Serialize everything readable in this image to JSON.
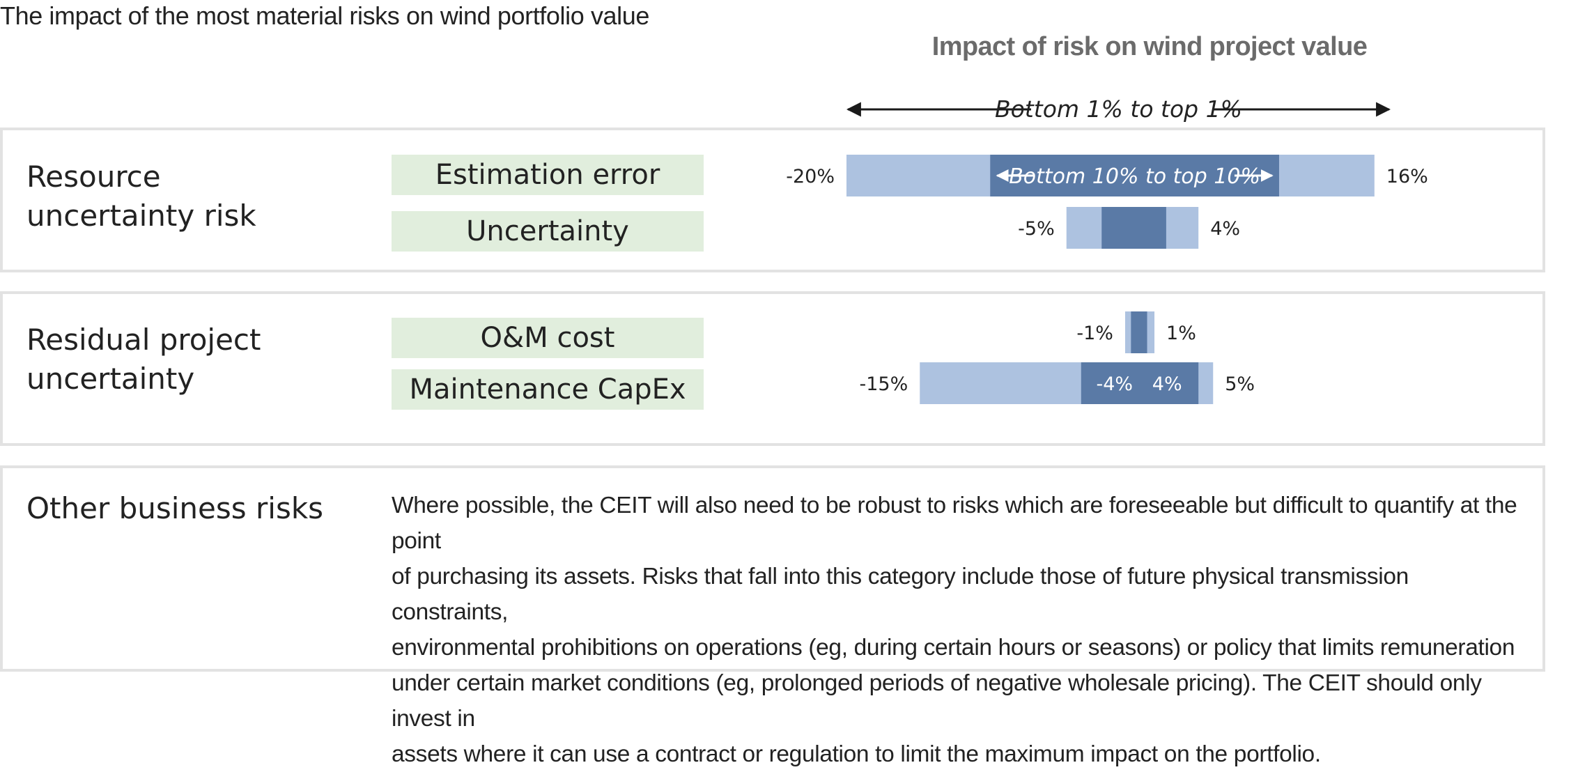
{
  "figure_title": "The impact of the most material risks on wind portfolio value",
  "chart_data": {
    "type": "bar",
    "title": "Impact of risk on wind project value",
    "outer_range_label": "Bottom 1% to top 1%",
    "inner_range_label": "Bottom 10% to top 10%",
    "colors": {
      "outer": "#adc2e0",
      "inner": "#5a7aa6",
      "panel_border": "#e2e2e2",
      "risk_box": "#e1eedd"
    },
    "groups": [
      {
        "name": "Resource uncertainty risk",
        "label_lines": [
          "Resource",
          "uncertainty risk"
        ]
      },
      {
        "name": "Residual project uncertainty",
        "label_lines": [
          "Residual project",
          "uncertainty"
        ]
      }
    ],
    "categories": [
      "Estimation error",
      "Uncertainty",
      "O&M cost",
      "Maintenance CapEx"
    ],
    "series": [
      {
        "name": "Bottom 1% to top 1%",
        "low": [
          -20,
          -5,
          -1,
          -15
        ],
        "high": [
          16,
          4,
          1,
          5
        ],
        "low_labels": [
          "-20%",
          "-5%",
          "-1%",
          "-15%"
        ],
        "high_labels": [
          "16%",
          "4%",
          "1%",
          "5%"
        ]
      },
      {
        "name": "Bottom 10% to top 10%",
        "low": [
          -10.2,
          -2.6,
          -0.6,
          -4
        ],
        "high": [
          9.5,
          1.8,
          0.5,
          4
        ],
        "low_labels": [
          "",
          "",
          "",
          "-4%"
        ],
        "high_labels": [
          "",
          "",
          "",
          "4%"
        ]
      }
    ],
    "group_of_category": [
      0,
      0,
      1,
      1
    ],
    "xlim": [
      -22,
      18
    ]
  },
  "other_risks": {
    "label": "Other business risks",
    "text_lines": [
      "Where possible, the CEIT will also need to be robust to risks which are foreseeable but difficult to quantify at the point",
      "of purchasing its assets. Risks that fall into this category include those of future physical transmission constraints,",
      "environmental prohibitions on operations (eg, during certain hours or seasons) or policy that limits remuneration",
      "under certain market conditions (eg, prolonged periods of negative wholesale pricing). The CEIT should only invest in",
      "assets where it can use a contract or regulation to limit the maximum impact on the portfolio."
    ]
  }
}
